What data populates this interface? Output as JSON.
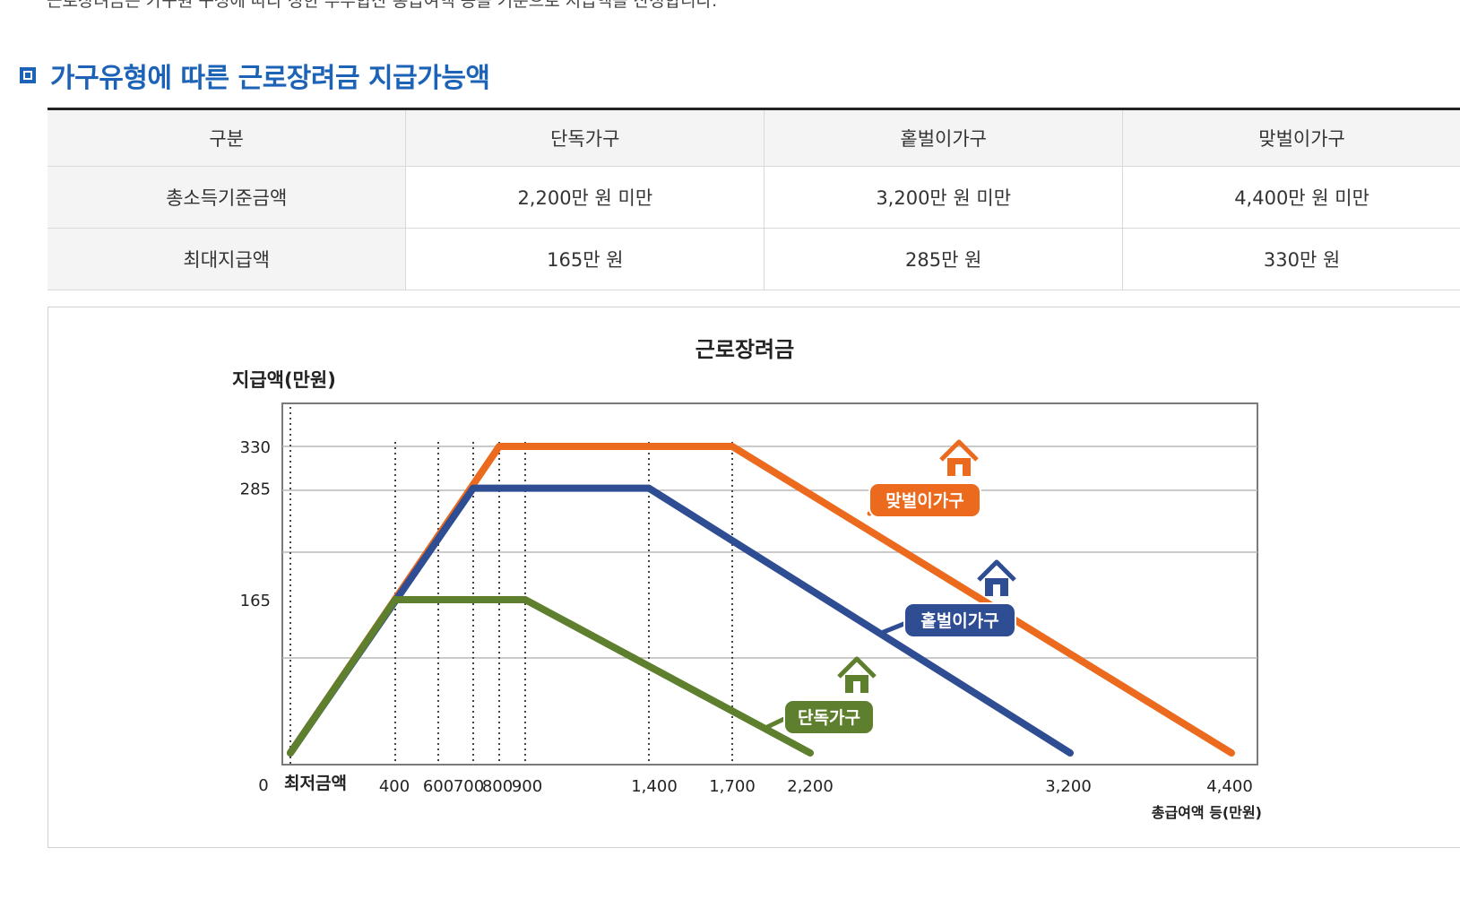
{
  "intro_text": "근로장려금은 가구원 구성에 따라 정한 부부합산 총급여액 등을 기준으로 지급액을 산정합니다.",
  "section": {
    "title": "가구유형에 따른 근로장려금 지급가능액"
  },
  "table": {
    "headers": [
      "구분",
      "단독가구",
      "홑벌이가구",
      "맞벌이가구"
    ],
    "rows": [
      {
        "label": "총소득기준금액",
        "cells": [
          "2,200만 원 미만",
          "3,200만 원 미만",
          "4,400만 원 미만"
        ]
      },
      {
        "label": "최대지급액",
        "cells": [
          "165만 원",
          "285만 원",
          "330만 원"
        ]
      }
    ]
  },
  "colors": {
    "accent": "#1c63b7",
    "single": "#5e7f2d",
    "one_earner": "#2f4d93",
    "dual_earner": "#ec6a1e"
  },
  "chart_data": {
    "type": "line",
    "title": "근로장려금",
    "ylabel": "지급액(만원)",
    "xlabel": "총급여액 등(만원)",
    "x_origin_labels": [
      "0",
      "최저금액"
    ],
    "x_ticks": [
      "400",
      "600",
      "700",
      "800",
      "900",
      "1,400",
      "1,700",
      "2,200",
      "3,200",
      "4,400"
    ],
    "y_ticks": [
      "165",
      "285",
      "330"
    ],
    "grid": true,
    "series": [
      {
        "name": "단독가구",
        "color": "#5e7f2d",
        "icon": "house-icon",
        "x": [
          0,
          400,
          900,
          2200
        ],
        "y": [
          0,
          165,
          165,
          0
        ]
      },
      {
        "name": "홑벌이가구",
        "color": "#2f4d93",
        "icon": "house-icon",
        "x": [
          0,
          700,
          1400,
          3200
        ],
        "y": [
          0,
          285,
          285,
          0
        ]
      },
      {
        "name": "맞벌이가구",
        "color": "#ec6a1e",
        "icon": "house-icon",
        "x": [
          0,
          800,
          1700,
          4400
        ],
        "y": [
          0,
          330,
          330,
          0
        ]
      }
    ]
  }
}
